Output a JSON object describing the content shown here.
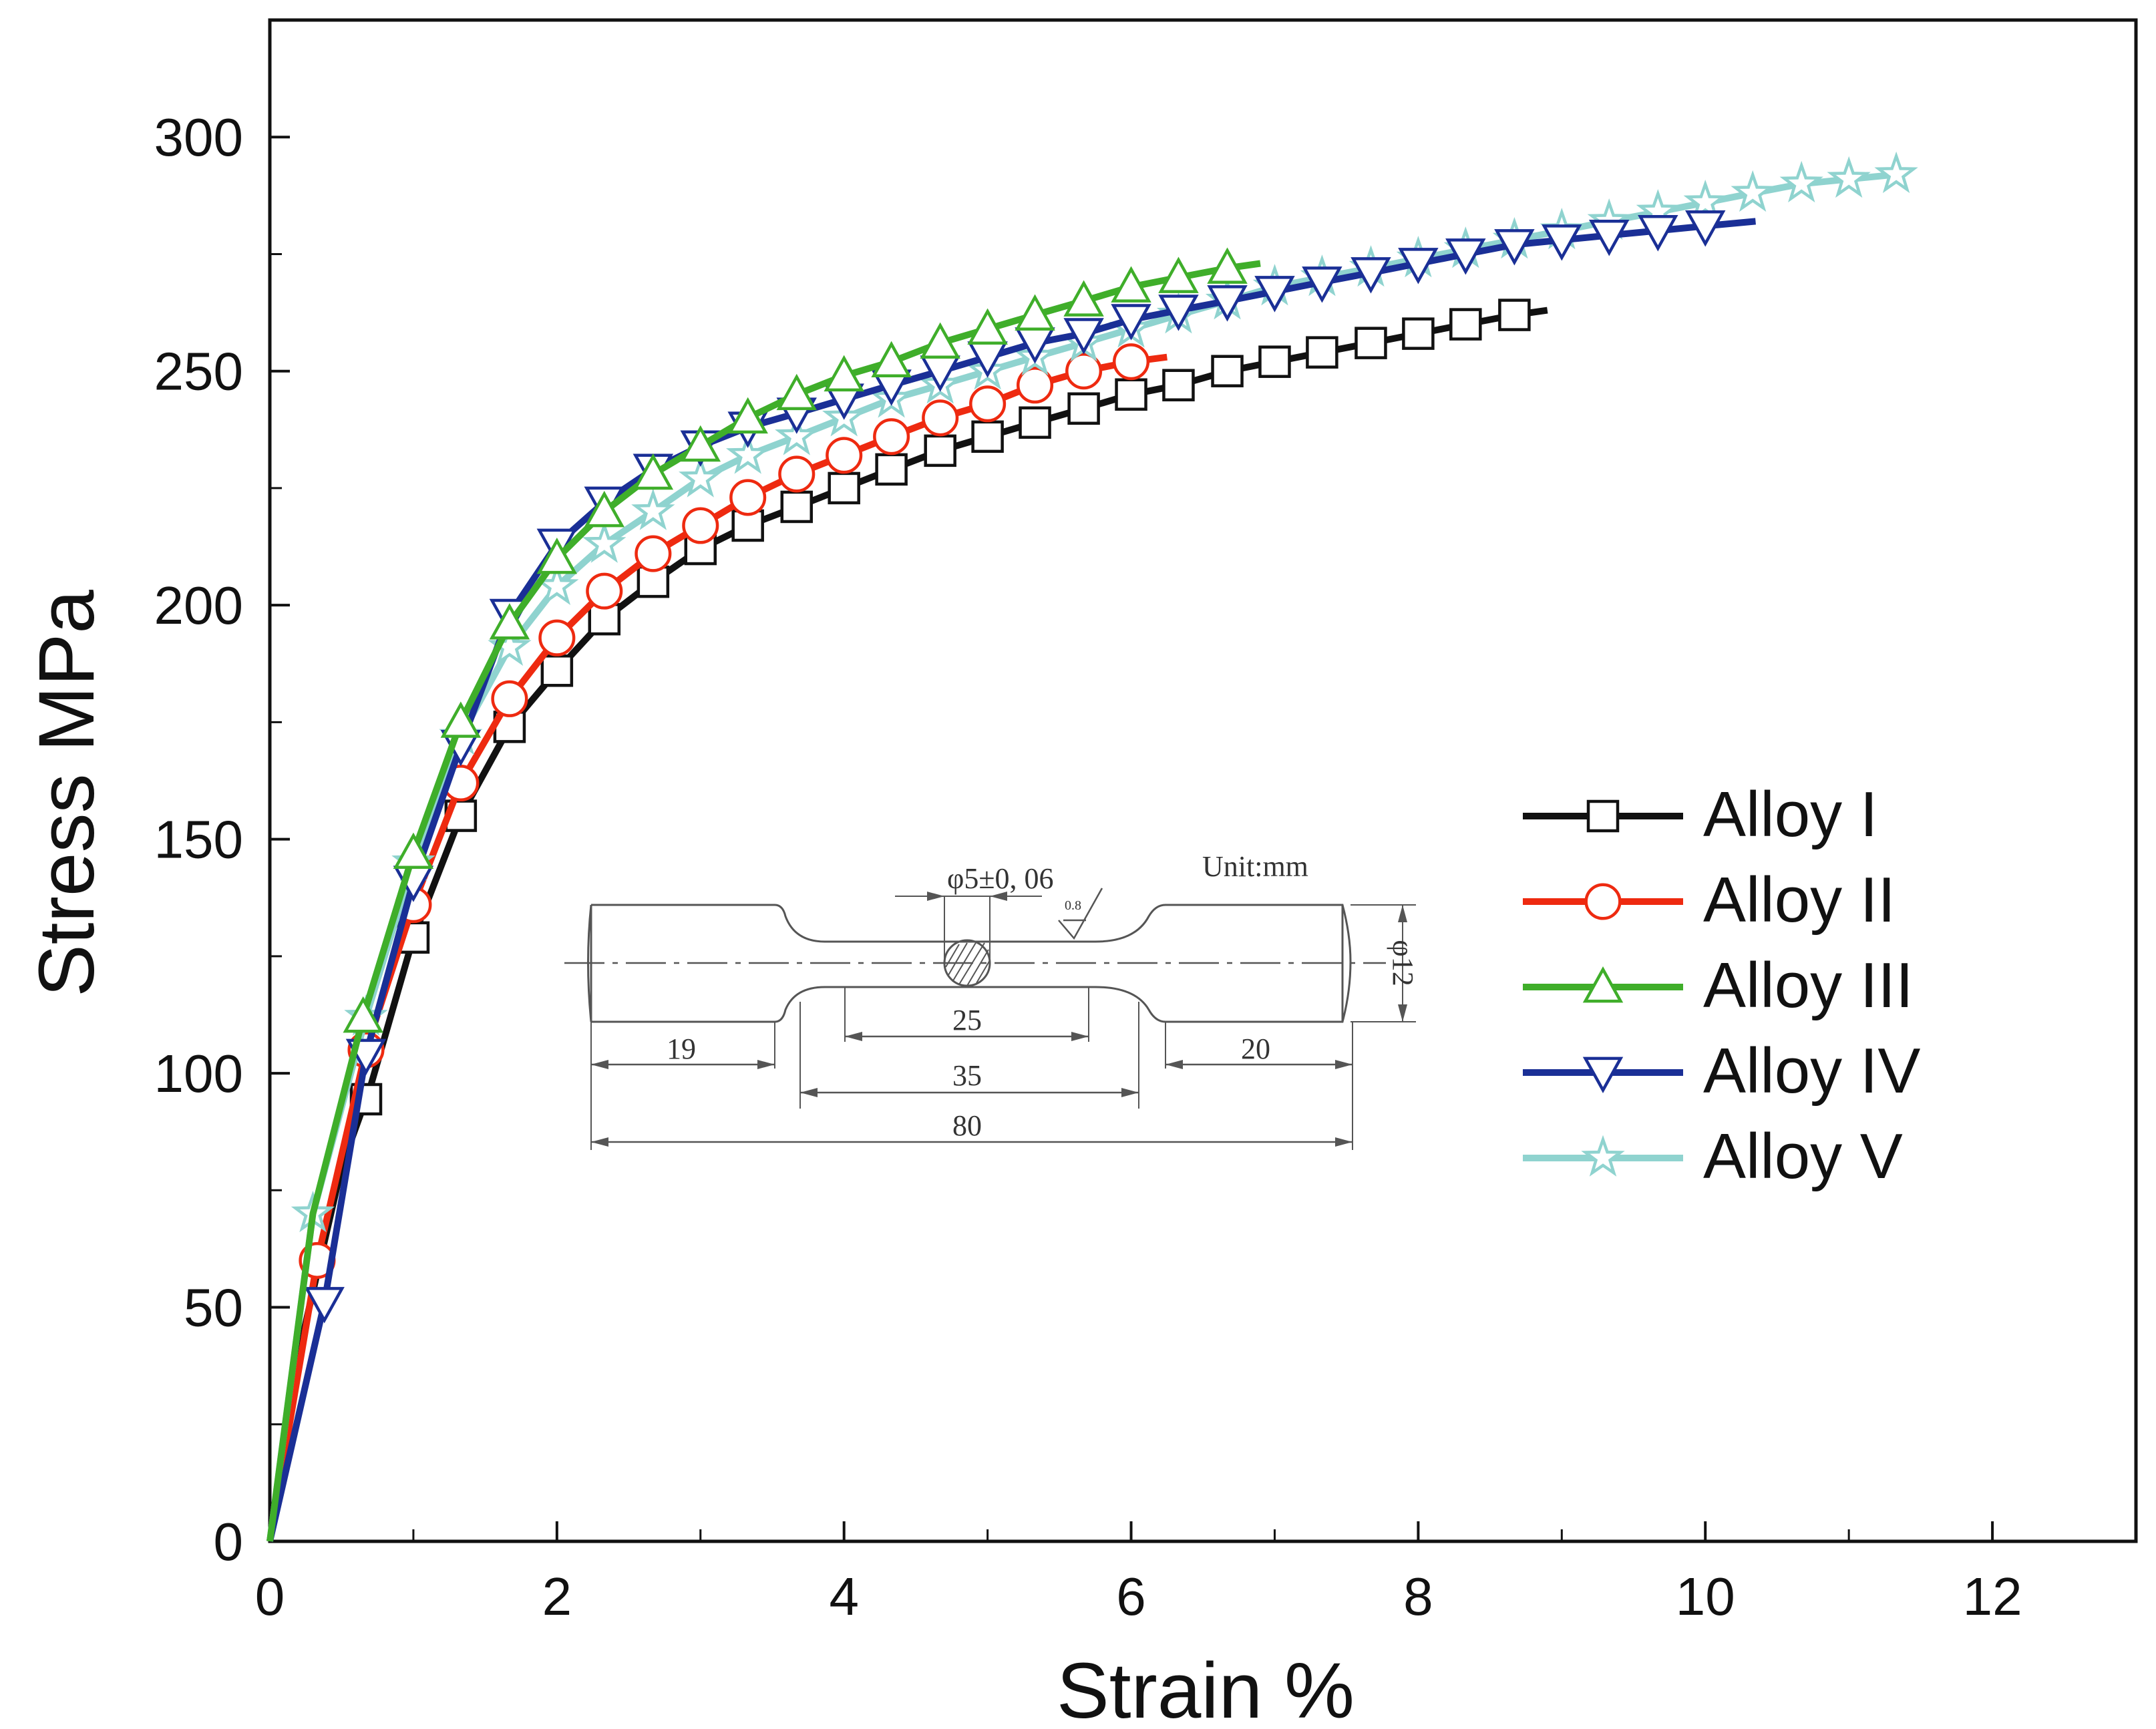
{
  "chart_data": {
    "type": "line",
    "xlabel": "Strain %",
    "ylabel": "Stress MPa",
    "xlim": [
      0,
      13
    ],
    "ylim": [
      0,
      325
    ],
    "xticks": [
      0,
      2,
      4,
      6,
      8,
      10,
      12
    ],
    "yticks": [
      0,
      50,
      100,
      150,
      200,
      250,
      300
    ],
    "xtick_labels": [
      "0",
      "2",
      "4",
      "6",
      "8",
      "10",
      "12"
    ],
    "ytick_labels": [
      "0",
      "50",
      "100",
      "150",
      "200",
      "250",
      "300"
    ],
    "legend_position": "right",
    "series": [
      {
        "name": "Alloy I",
        "color": "#111111",
        "marker": "square",
        "x": [
          0,
          0.2,
          0.5,
          0.7,
          1.0,
          1.33,
          1.67,
          2.0,
          2.33,
          2.67,
          3.0,
          3.33,
          3.67,
          4.0,
          4.33,
          4.67,
          5.0,
          5.33,
          5.67,
          6.0,
          6.33,
          6.67,
          7.0,
          7.33,
          7.67,
          8.0,
          8.33,
          8.67,
          8.9
        ],
        "y": [
          0,
          40,
          80,
          97,
          129,
          155,
          174,
          186,
          197,
          205,
          212,
          217,
          221,
          225,
          229,
          233,
          236,
          239,
          242,
          245,
          247,
          250,
          252,
          254,
          256,
          258,
          260,
          262,
          263
        ],
        "marker_x": [
          0.67,
          1.0,
          1.33,
          1.67,
          2.0,
          2.33,
          2.67,
          3.0,
          3.33,
          3.67,
          4.0,
          4.33,
          4.67,
          5.0,
          5.33,
          5.67,
          6.0,
          6.33,
          6.67,
          7.0,
          7.33,
          7.67,
          8.0,
          8.33,
          8.67
        ]
      },
      {
        "name": "Alloy II",
        "color": "#ee2a10",
        "marker": "circle",
        "x": [
          0,
          0.33,
          0.67,
          1.0,
          1.33,
          1.67,
          2.0,
          2.33,
          2.67,
          3.0,
          3.33,
          3.67,
          4.0,
          4.33,
          4.67,
          5.0,
          5.33,
          5.67,
          6.0,
          6.25
        ],
        "y": [
          0,
          60,
          105,
          136,
          162,
          180,
          193,
          203,
          211,
          217,
          223,
          228,
          232,
          236,
          240,
          243,
          247,
          250,
          252,
          253
        ],
        "marker_x": [
          0.33,
          0.67,
          1.0,
          1.33,
          1.67,
          2.0,
          2.33,
          2.67,
          3.0,
          3.33,
          3.67,
          4.0,
          4.33,
          4.67,
          5.0,
          5.33,
          5.67,
          6.0
        ]
      },
      {
        "name": "Alloy III",
        "color": "#3fae2a",
        "marker": "triangle-up",
        "x": [
          0,
          0.3,
          0.65,
          1.0,
          1.33,
          1.67,
          2.0,
          2.33,
          2.67,
          3.0,
          3.33,
          3.67,
          4.0,
          4.33,
          4.67,
          5.0,
          5.33,
          5.67,
          6.0,
          6.33,
          6.67,
          6.9
        ],
        "y": [
          0,
          70,
          112,
          147,
          175,
          196,
          210,
          220,
          228,
          234,
          240,
          245,
          249,
          252,
          256,
          259,
          262,
          265,
          268,
          270,
          272,
          273
        ],
        "marker_x": [
          0.65,
          1.0,
          1.33,
          1.67,
          2.0,
          2.33,
          2.67,
          3.0,
          3.33,
          3.67,
          4.0,
          4.33,
          4.67,
          5.0,
          5.33,
          5.67,
          6.0,
          6.33,
          6.67
        ]
      },
      {
        "name": "Alloy IV",
        "color": "#1a2f96",
        "marker": "triangle-down",
        "x": [
          0,
          0.38,
          0.67,
          1.0,
          1.33,
          1.67,
          2.0,
          2.33,
          2.67,
          3.0,
          3.33,
          3.67,
          4.0,
          4.33,
          4.67,
          5.0,
          5.33,
          5.67,
          6.0,
          6.33,
          6.67,
          7.0,
          7.33,
          7.67,
          8.0,
          8.33,
          8.67,
          9.0,
          9.33,
          9.67,
          10.0,
          10.35
        ],
        "y": [
          0,
          51,
          104,
          141,
          170,
          198,
          213,
          222,
          229,
          234,
          238,
          241,
          244,
          247,
          250,
          253,
          256,
          258,
          261,
          263,
          265,
          267,
          269,
          271,
          273,
          275,
          277,
          278,
          279,
          280,
          281,
          282
        ],
        "marker_x": [
          0.38,
          0.67,
          1.0,
          1.33,
          1.67,
          2.0,
          2.33,
          2.67,
          3.0,
          3.33,
          3.67,
          4.0,
          4.33,
          4.67,
          5.0,
          5.33,
          5.67,
          6.0,
          6.33,
          6.67,
          7.0,
          7.33,
          7.67,
          8.0,
          8.33,
          8.67,
          9.0,
          9.33,
          9.67,
          10.0
        ]
      },
      {
        "name": "Alloy V",
        "color": "#8fd3cf",
        "marker": "star",
        "x": [
          0,
          0.3,
          0.67,
          1.0,
          1.33,
          1.67,
          2.0,
          2.33,
          2.67,
          3.0,
          3.33,
          3.67,
          4.0,
          4.33,
          4.67,
          5.0,
          5.33,
          5.67,
          6.0,
          6.33,
          6.67,
          7.0,
          7.33,
          7.67,
          8.0,
          8.33,
          8.67,
          9.0,
          9.33,
          9.67,
          10.0,
          10.33,
          10.67,
          11.0,
          11.33
        ],
        "y": [
          0,
          70,
          112,
          145,
          172,
          191,
          204,
          213,
          220,
          227,
          232,
          236,
          240,
          244,
          247,
          250,
          253,
          256,
          259,
          262,
          265,
          268,
          270,
          272,
          274,
          276,
          278,
          280,
          282,
          284,
          286,
          288,
          290,
          291,
          292
        ],
        "marker_x": [
          0.3,
          0.67,
          1.0,
          1.33,
          1.67,
          2.0,
          2.33,
          2.67,
          3.0,
          3.33,
          3.67,
          4.0,
          4.33,
          4.67,
          5.0,
          5.33,
          5.67,
          6.0,
          6.33,
          6.67,
          7.0,
          7.33,
          7.67,
          8.0,
          8.33,
          8.67,
          9.0,
          9.33,
          9.67,
          10.0,
          10.33,
          10.67,
          11.0,
          11.33
        ]
      }
    ],
    "inset": {
      "unit_label": "Unit:mm",
      "tolerance_label": "φ5±0, 06",
      "diameter_label": "φ12",
      "roughness_label": "0.8",
      "dims": {
        "d19": "19",
        "d25": "25",
        "d35": "35",
        "d20": "20",
        "d80": "80"
      }
    }
  }
}
